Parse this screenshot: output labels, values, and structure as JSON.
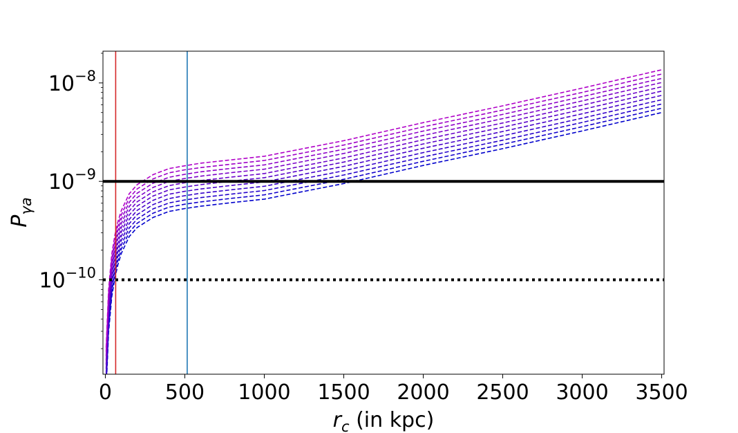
{
  "chart_data": {
    "type": "line",
    "x_scale": "linear",
    "y_scale": "log",
    "xlim": [
      -15,
      3515
    ],
    "ylim": [
      1.1e-11,
      2.1e-08
    ],
    "xticks": [
      {
        "value": 0,
        "label": "0"
      },
      {
        "value": 500,
        "label": "500"
      },
      {
        "value": 1000,
        "label": "1000"
      },
      {
        "value": 1500,
        "label": "1500"
      },
      {
        "value": 2000,
        "label": "2000"
      },
      {
        "value": 2500,
        "label": "2500"
      },
      {
        "value": 3000,
        "label": "3000"
      },
      {
        "value": 3500,
        "label": "3500"
      }
    ],
    "yticks": [
      {
        "value": 1e-10,
        "base": "10",
        "exp": "−10"
      },
      {
        "value": 1e-09,
        "base": "10",
        "exp": "−9"
      },
      {
        "value": 1e-08,
        "base": "10",
        "exp": "−8"
      }
    ],
    "xlabel": {
      "var": "r",
      "sub": "c",
      "rest": " (in kpc)"
    },
    "ylabel": {
      "var": "P",
      "sub": "γa"
    },
    "grid": false,
    "legend": "none",
    "hlines": [
      {
        "y": 1e-09,
        "style": "solid",
        "color": "#000000"
      },
      {
        "y": 1e-10,
        "style": "dotted",
        "color": "#000000"
      }
    ],
    "vlines": [
      {
        "x": 65,
        "color": "#d62728"
      },
      {
        "x": 515,
        "color": "#1f77b4"
      }
    ],
    "series_color_start": "#0000cc",
    "series_color_end": "#b000c8",
    "series_style": "dashed",
    "series_x": [
      5,
      20,
      40,
      60,
      80,
      100,
      150,
      200,
      300,
      400,
      500,
      600,
      800,
      1000,
      1500,
      2000,
      2500,
      3000,
      3500
    ],
    "series": [
      {
        "values": [
          7.5e-12,
          2.9e-11,
          6.7e-11,
          1.05e-10,
          1.45e-10,
          1.85e-10,
          2.75e-10,
          3.4e-10,
          4.3e-10,
          4.95e-10,
          5.3e-10,
          5.6e-10,
          6.1e-10,
          6.6e-10,
          9.5e-10,
          1.45e-09,
          2.15e-09,
          3.25e-09,
          5e-09
        ]
      },
      {
        "values": [
          8.3e-12,
          3.2e-11,
          7.4e-11,
          1.16e-10,
          1.6e-10,
          2.05e-10,
          3.04e-10,
          3.76e-10,
          4.75e-10,
          5.47e-10,
          5.86e-10,
          6.19e-10,
          6.74e-10,
          7.3e-10,
          1.05e-09,
          1.6e-09,
          2.38e-09,
          3.59e-09,
          5.53e-09
        ]
      },
      {
        "values": [
          9.2e-12,
          3.55e-11,
          8.2e-11,
          1.28e-10,
          1.77e-10,
          2.26e-10,
          3.36e-10,
          4.15e-10,
          5.25e-10,
          6.04e-10,
          6.47e-10,
          6.84e-10,
          7.45e-10,
          8.06e-10,
          1.16e-09,
          1.77e-09,
          2.62e-09,
          3.97e-09,
          6.1e-09
        ]
      },
      {
        "values": [
          1.02e-11,
          3.92e-11,
          9.05e-11,
          1.42e-10,
          1.96e-10,
          2.5e-10,
          3.72e-10,
          4.59e-10,
          5.81e-10,
          6.69e-10,
          7.16e-10,
          7.57e-10,
          8.24e-10,
          8.92e-10,
          1.28e-09,
          1.96e-09,
          2.9e-09,
          4.39e-09,
          6.75e-09
        ]
      },
      {
        "values": [
          1.13e-11,
          4.34e-11,
          1e-10,
          1.57e-10,
          2.17e-10,
          2.77e-10,
          4.11e-10,
          5.08e-10,
          6.42e-10,
          7.4e-10,
          7.92e-10,
          8.37e-10,
          9.12e-10,
          9.87e-10,
          1.42e-09,
          2.17e-09,
          3.21e-09,
          4.86e-09,
          7.47e-09
        ]
      },
      {
        "values": [
          1.25e-11,
          4.8e-11,
          1.11e-10,
          1.74e-10,
          2.4e-10,
          3.06e-10,
          4.55e-10,
          5.62e-10,
          7.1e-10,
          8.18e-10,
          8.76e-10,
          9.26e-10,
          1.01e-09,
          1.09e-09,
          1.57e-09,
          2.4e-09,
          3.55e-09,
          5.37e-09,
          8.26e-09
        ]
      },
      {
        "values": [
          1.38e-11,
          5.3e-11,
          1.22e-10,
          1.92e-10,
          2.65e-10,
          3.38e-10,
          5.02e-10,
          6.21e-10,
          7.85e-10,
          9.04e-10,
          9.68e-10,
          1.02e-09,
          1.11e-09,
          1.2e-09,
          1.73e-09,
          2.65e-09,
          3.92e-09,
          5.94e-09,
          9.13e-09
        ]
      },
      {
        "values": [
          1.52e-11,
          5.86e-11,
          1.35e-10,
          2.12e-10,
          2.93e-10,
          3.73e-10,
          5.55e-10,
          6.86e-10,
          8.67e-10,
          9.99e-10,
          1.07e-09,
          1.13e-09,
          1.23e-09,
          1.33e-09,
          1.92e-09,
          2.93e-09,
          4.34e-09,
          6.56e-09,
          1.01e-08
        ]
      },
      {
        "values": [
          1.68e-11,
          6.47e-11,
          1.49e-10,
          2.34e-10,
          3.24e-10,
          4.13e-10,
          6.13e-10,
          7.58e-10,
          9.58e-10,
          1.1e-09,
          1.18e-09,
          1.25e-09,
          1.36e-09,
          1.47e-09,
          2.12e-09,
          3.24e-09,
          4.79e-09,
          7.25e-09,
          1.11e-08
        ]
      },
      {
        "values": [
          1.86e-11,
          7.15e-11,
          1.65e-10,
          2.59e-10,
          3.58e-10,
          4.56e-10,
          6.78e-10,
          8.38e-10,
          1.06e-09,
          1.22e-09,
          1.31e-09,
          1.38e-09,
          1.5e-09,
          1.63e-09,
          2.34e-09,
          3.58e-09,
          5.3e-09,
          8.01e-09,
          1.23e-08
        ]
      },
      {
        "values": [
          2.05e-11,
          7.9e-11,
          1.82e-10,
          2.86e-10,
          3.95e-10,
          5.04e-10,
          7.49e-10,
          9.26e-10,
          1.17e-09,
          1.35e-09,
          1.44e-09,
          1.53e-09,
          1.66e-09,
          1.8e-09,
          2.59e-09,
          3.95e-09,
          5.85e-09,
          8.85e-09,
          1.36e-08
        ]
      }
    ]
  }
}
